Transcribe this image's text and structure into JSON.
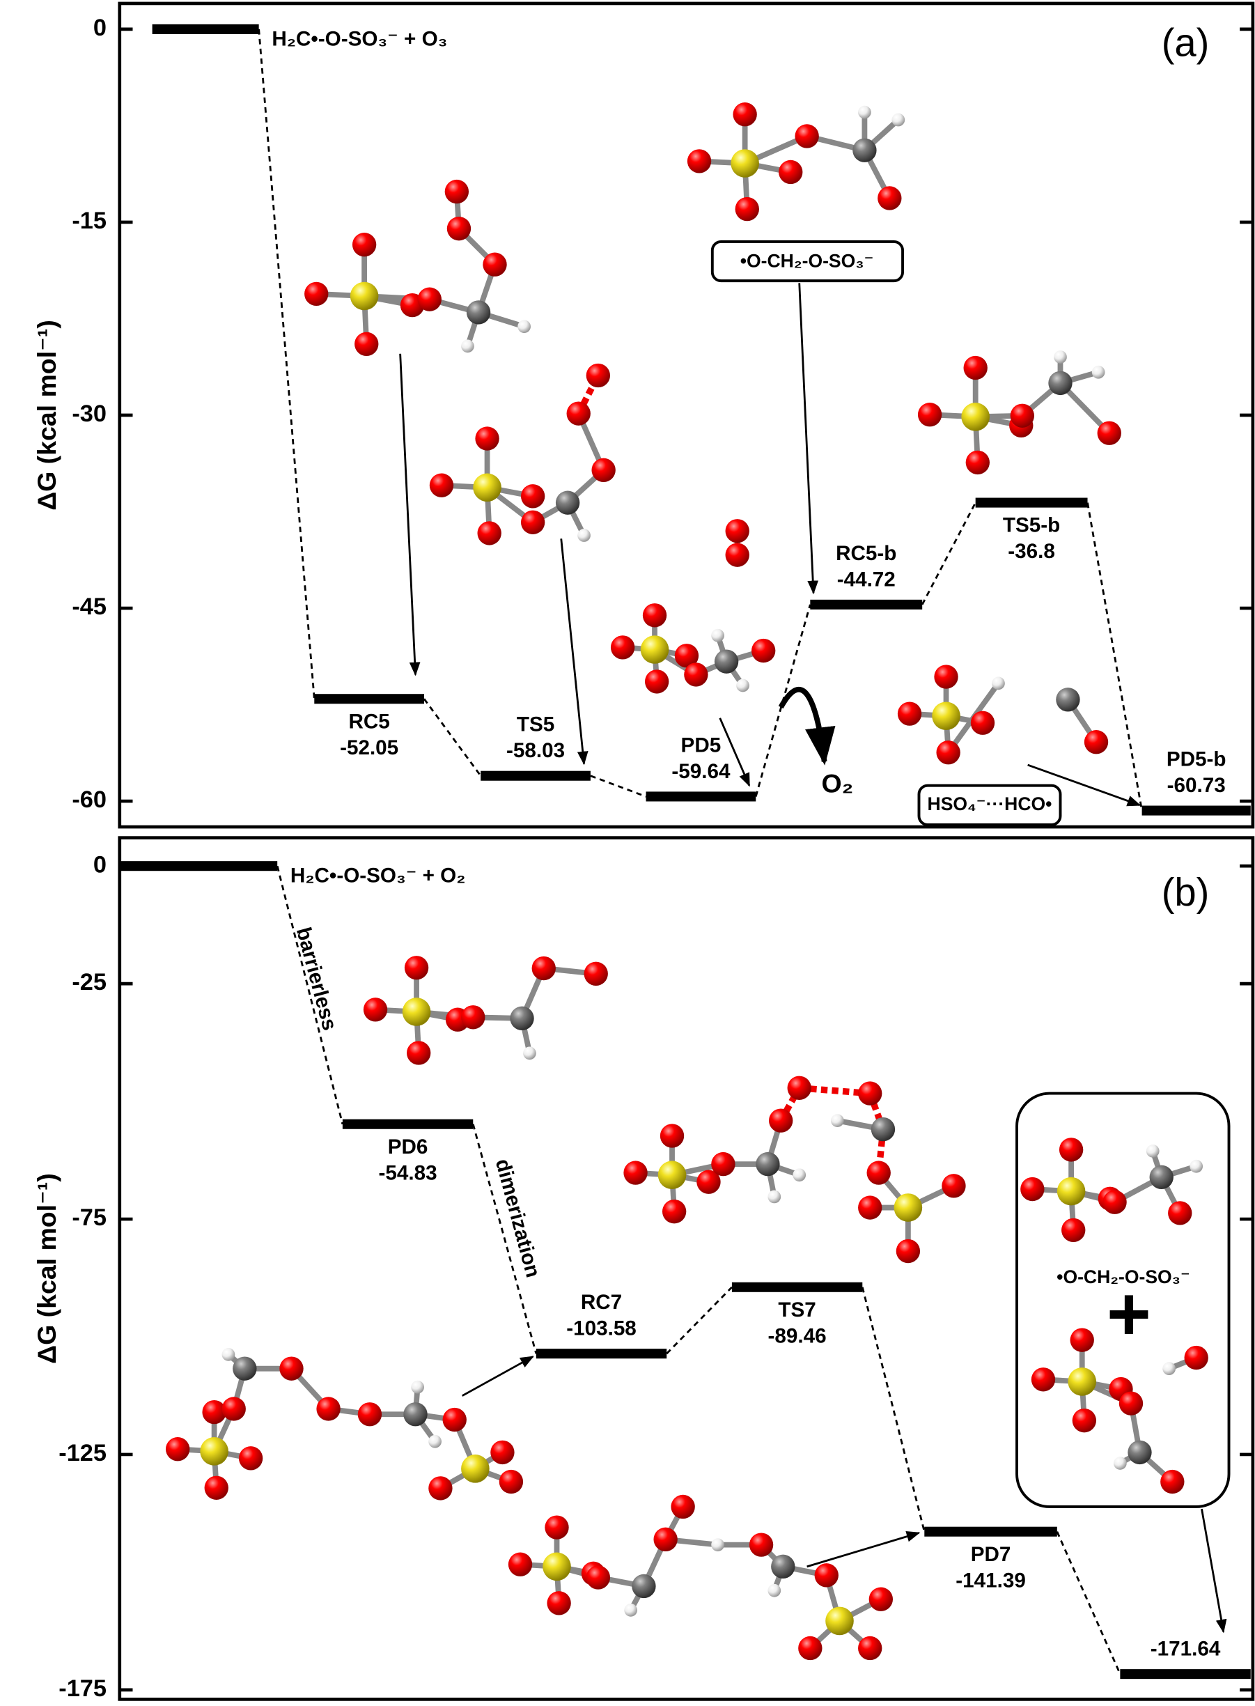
{
  "chart_data": [
    {
      "type": "energy-profile",
      "panel_label": "(a)",
      "y_label": "ΔG (kcal mol⁻¹)",
      "color": "#000000",
      "ylim": [
        -62,
        2
      ],
      "yticks": [
        0,
        -15,
        -30,
        -45,
        -60
      ],
      "levels": [
        {
          "name": "H₂C•-O-SO₃⁻ + O₃",
          "value": 0
        },
        {
          "name": "RC5",
          "value": -52.05
        },
        {
          "name": "TS5",
          "value": -58.03
        },
        {
          "name": "PD5",
          "value": -59.64
        },
        {
          "name": "RC5-b",
          "value": -44.72
        },
        {
          "name": "TS5-b",
          "value": -36.8
        },
        {
          "name": "PD5-b",
          "value": -60.73
        }
      ],
      "annotations": [
        "O₂",
        "•O-CH₂-O-SO₃⁻",
        "HSO₄⁻···HCO•"
      ]
    },
    {
      "type": "energy-profile",
      "panel_label": "(b)",
      "y_label": "ΔG (kcal mol⁻¹)",
      "color": "#000000",
      "ylim": [
        -177,
        6
      ],
      "yticks": [
        0,
        -25,
        -75,
        -125,
        -175
      ],
      "levels": [
        {
          "name": "H₂C•-O-SO₃⁻ + O₂",
          "value": 0
        },
        {
          "name": "PD6",
          "value": -54.83
        },
        {
          "name": "RC7",
          "value": -103.58
        },
        {
          "name": "TS7",
          "value": -89.46
        },
        {
          "name": "PD7",
          "value": -141.39
        },
        {
          "value": -171.64
        }
      ],
      "annotations": [
        "barrierless",
        "dimerization",
        "•O-CH₂-O-SO₃⁻",
        "+"
      ]
    }
  ]
}
